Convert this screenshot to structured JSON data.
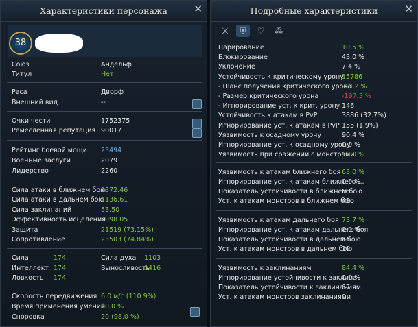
{
  "left": {
    "title": "Характеристики персонажа",
    "level": "38",
    "sections": [
      {
        "rows": [
          {
            "label": "Союз",
            "value": "Андельф"
          },
          {
            "label": "Титул",
            "value": "Нет",
            "color": "#7fc441"
          }
        ]
      },
      {
        "rows": [
          {
            "label": "Раса",
            "value": "Дворф"
          },
          {
            "label": "Внешний вид",
            "value": "--"
          }
        ]
      },
      {
        "rows": [
          {
            "label": "Очки чести",
            "value": "1752375"
          },
          {
            "label": "Ремесленная репутация",
            "value": "90017"
          }
        ]
      },
      {
        "rows": [
          {
            "label": "Рейтинг боевой мощи",
            "value": "23494",
            "color": "#5fa8e0"
          },
          {
            "label": "Военные заслуги",
            "value": "2079"
          },
          {
            "label": "Лидерство",
            "value": "2260"
          }
        ]
      },
      {
        "rows": [
          {
            "label": "Сила атаки в ближнем бою",
            "value": "1372.46",
            "color": "#7fc441"
          },
          {
            "label": "Сила атаки в дальнем бою",
            "value": "1136.61",
            "color": "#7fc441"
          },
          {
            "label": "Сила заклинаний",
            "value": "53.50",
            "color": "#7fc441"
          },
          {
            "label": "Эффективность исцеления",
            "value": "2098.05",
            "color": "#7fc441"
          },
          {
            "label": "Защита",
            "value": "21519 (73.15%)",
            "color": "#7fc441"
          },
          {
            "label": "Сопротивление",
            "value": "23503 (74.84%)",
            "color": "#7fc441"
          }
        ]
      },
      {
        "columns": [
          [
            {
              "label": "Сила",
              "value": "174",
              "color": "#7fc441"
            },
            {
              "label": "Интеллект",
              "value": "174",
              "color": "#7fc441"
            },
            {
              "label": "Ловкость",
              "value": "174",
              "color": "#7fc441"
            }
          ],
          [
            {
              "label": "Сила духа",
              "value": "1103",
              "color": "#7fc441"
            },
            {
              "label": "Выносливость",
              "value": "1416",
              "color": "#7fc441"
            }
          ]
        ]
      },
      {
        "rows": [
          {
            "label": "Скорость передвижения",
            "value": "6.0 м/с (110.9%)",
            "color": "#7fc441"
          },
          {
            "label": "Время применения умений",
            "value": "40.0 %",
            "color": "#7fc441"
          },
          {
            "label": "Сноровка",
            "value": "20 (98.0 %)",
            "color": "#7fc441"
          }
        ]
      }
    ]
  },
  "right": {
    "title": "Подробные характеристики",
    "sections": [
      {
        "rows": [
          {
            "label": "Парирование",
            "value": "10.5 %",
            "color": "#7fc441"
          },
          {
            "label": "Блокирование",
            "value": "43.0 %"
          },
          {
            "label": "Уклонение",
            "value": "7.4 %"
          },
          {
            "label": "Устойчивость к критическому урону",
            "value": "15786",
            "color": "#7fc441"
          },
          {
            "label": "- Шанс получения критического урона",
            "value": "-43.2 %",
            "color": "#7fc441"
          },
          {
            "label": "- Размер критического урона",
            "value": "-197.3 %",
            "color": "#e0443a"
          },
          {
            "label": "- Игнорирование уст. к крит. урону",
            "value": "146"
          },
          {
            "label": "Устойчивость к атакам в PvP",
            "value": "3886 (32.7%)"
          },
          {
            "label": "Игнорирование уст. к атакам в PvP",
            "value": "155 (1.9%)"
          },
          {
            "label": "Уязвимость к осадному урону",
            "value": "90.4 %"
          },
          {
            "label": "Игнорирование уст. к осадному урону",
            "value": "0.0 %"
          },
          {
            "label": "Уязвимость при сражении с монстрами",
            "value": "96.0 %",
            "color": "#7fc441"
          }
        ]
      },
      {
        "rows": [
          {
            "label": "Уязвимость к атакам ближнего боя",
            "value": "63.0 %",
            "color": "#7fc441"
          },
          {
            "label": "Игнорирование уст. к атакам ближнего ...",
            "value": "0.0 %"
          },
          {
            "label": "Показатель устойчивости в ближнем бою",
            "value": "66"
          },
          {
            "label": "Уст. к атакам монстров в ближнем бою",
            "value": "48"
          }
        ]
      },
      {
        "rows": [
          {
            "label": "Уязвимость к атакам дальнего боя",
            "value": "73.7 %",
            "color": "#7fc441"
          },
          {
            "label": "Игнорирование уст. к атакам дальнего боя",
            "value": "0.0 %"
          },
          {
            "label": "Показатель устойчивости в дальнем бою",
            "value": "66"
          },
          {
            "label": "Уст. к атакам монстров в дальнем бою",
            "value": "19"
          }
        ]
      },
      {
        "rows": [
          {
            "label": "Уязвимость к заклинаниям",
            "value": "84.4 %",
            "color": "#7fc441"
          },
          {
            "label": "Игнорирование устойчивости к заклина...",
            "value": "0.0 %"
          },
          {
            "label": "Показатель устойчивости к заклинаниям",
            "value": "67"
          },
          {
            "label": "Уст. к атакам монстров заклинаниями",
            "value": "0"
          }
        ]
      }
    ]
  }
}
